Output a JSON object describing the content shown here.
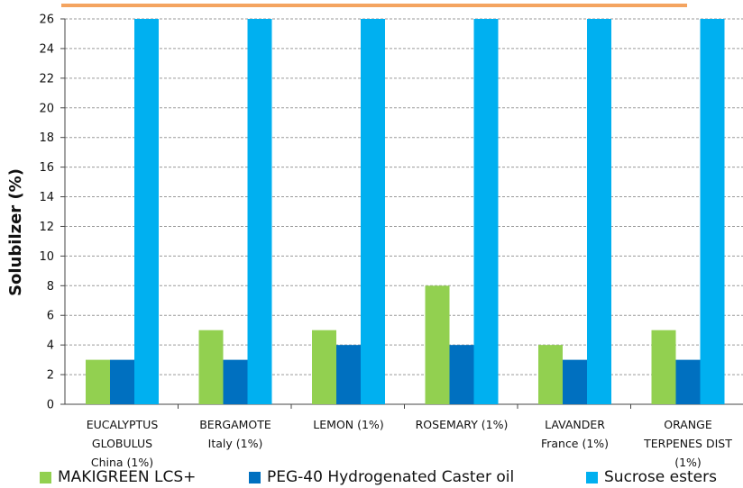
{
  "chart_data": {
    "type": "bar",
    "title": "",
    "xlabel": "",
    "ylabel": "Solubilzer (%)",
    "ylim": [
      0,
      26
    ],
    "ytick_step": 2,
    "grid": true,
    "legend_position": "bottom",
    "categories": [
      [
        "EUCALYPTUS",
        "GLOBULUS",
        "China (1%)"
      ],
      [
        "BERGAMOTE",
        "Italy (1%)"
      ],
      [
        "LEMON (1%)"
      ],
      [
        "ROSEMARY (1%)"
      ],
      [
        "LAVANDER",
        "France (1%)"
      ],
      [
        "ORANGE",
        "TERPENES DIST",
        "(1%)"
      ]
    ],
    "series": [
      {
        "name": "MAKIGREEN LCS+",
        "color": "#92D050",
        "values": [
          3,
          5,
          5,
          8,
          4,
          5
        ]
      },
      {
        "name": "PEG-40 Hydrogenated Caster oil",
        "color": "#0070C0",
        "values": [
          3,
          3,
          4,
          4,
          3,
          3
        ]
      },
      {
        "name": "Sucrose esters",
        "color": "#00B0F0",
        "values": [
          26,
          26,
          26,
          26,
          26,
          26
        ]
      }
    ],
    "top_bar_color": "#F4A460"
  }
}
